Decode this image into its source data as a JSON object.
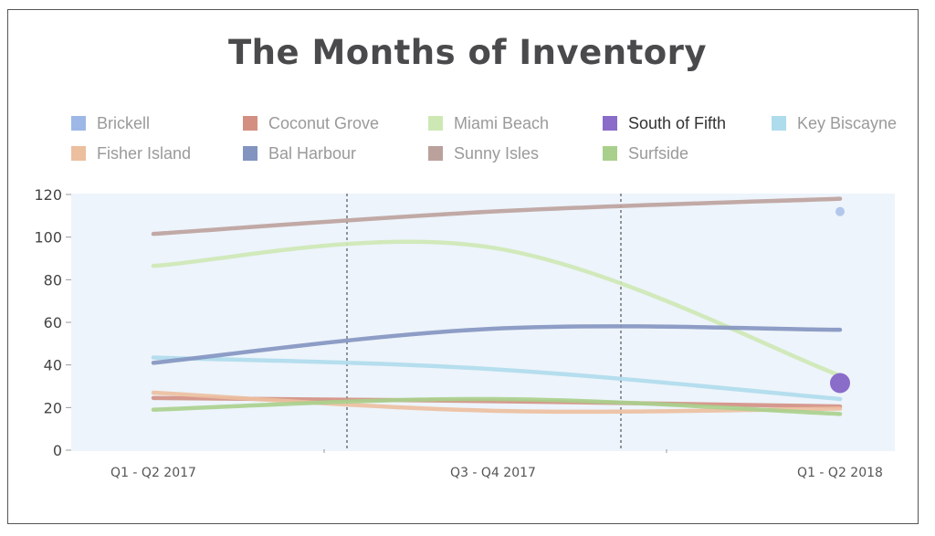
{
  "chart_data": {
    "type": "line",
    "title": "The Months of Inventory",
    "xlabel": "",
    "ylabel": "",
    "categories": [
      "Q1 - Q2 2017",
      "Q3 - Q4 2017",
      "Q1 - Q2 2018"
    ],
    "ylim": [
      0,
      120
    ],
    "yticks": [
      "0",
      "20",
      "40",
      "60",
      "80",
      "100",
      "120"
    ],
    "grid": false,
    "legend_position": "top",
    "series": [
      {
        "name": "Brickell",
        "color": "#9db8e6",
        "values": [
          null,
          null,
          112
        ]
      },
      {
        "name": "Coconut Grove",
        "color": "#d38f82",
        "values": [
          24.5,
          23,
          20.5
        ]
      },
      {
        "name": "Miami Beach",
        "color": "#cde8b4",
        "values": [
          86.5,
          95,
          35
        ]
      },
      {
        "name": "South of Fifth",
        "color": "#8a6cc9",
        "values": [
          null,
          null,
          31.5
        ],
        "active": true
      },
      {
        "name": "Key Biscayne",
        "color": "#aedcec",
        "values": [
          43.5,
          38,
          24
        ]
      },
      {
        "name": "Fisher Island",
        "color": "#ecbf9f",
        "values": [
          27,
          18.5,
          19.5
        ]
      },
      {
        "name": "Bal Harbour",
        "color": "#8394c0",
        "values": [
          41,
          57,
          56.5
        ]
      },
      {
        "name": "Sunny Isles",
        "color": "#bba19c",
        "values": [
          101.5,
          112,
          118
        ]
      },
      {
        "name": "Surfside",
        "color": "#a8d08c",
        "values": [
          19,
          24,
          17
        ]
      }
    ]
  }
}
